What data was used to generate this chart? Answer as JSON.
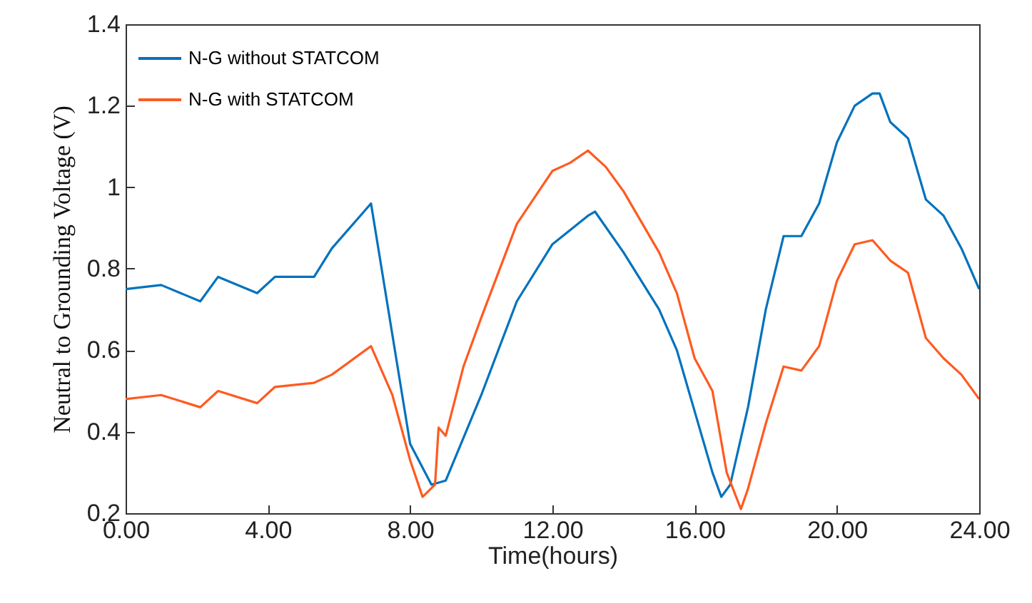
{
  "chart_data": {
    "type": "line",
    "xlabel": "Time(hours)",
    "ylabel": "Neutral to Grounding Voltage (V)",
    "xlim": [
      0,
      24
    ],
    "ylim": [
      0.2,
      1.4
    ],
    "xticks": [
      {
        "value": 0,
        "label": "0.00"
      },
      {
        "value": 4,
        "label": "4.00"
      },
      {
        "value": 8,
        "label": "8.00"
      },
      {
        "value": 12,
        "label": "12.00"
      },
      {
        "value": 16,
        "label": "16.00"
      },
      {
        "value": 20,
        "label": "20.00"
      },
      {
        "value": 24,
        "label": "24.00"
      }
    ],
    "yticks": [
      0.2,
      0.4,
      0.6,
      0.8,
      1,
      1.2,
      1.4
    ],
    "legend": "top left",
    "series": [
      {
        "name": "N-G without STATCOM",
        "color": "#0072bd",
        "x": [
          0,
          1,
          2.1,
          2.6,
          3.7,
          4.2,
          5.3,
          5.8,
          6.9,
          8,
          8.6,
          9,
          10,
          11,
          12,
          13,
          13.2,
          14,
          15,
          15.5,
          16,
          16.5,
          16.75,
          17,
          17.5,
          18,
          18.5,
          19,
          19.5,
          20,
          20.5,
          21,
          21.2,
          21.5,
          22,
          22.5,
          23,
          23.5,
          24
        ],
        "values": [
          0.75,
          0.76,
          0.72,
          0.78,
          0.74,
          0.78,
          0.78,
          0.85,
          0.96,
          0.37,
          0.27,
          0.28,
          0.49,
          0.72,
          0.86,
          0.93,
          0.94,
          0.84,
          0.7,
          0.6,
          0.45,
          0.3,
          0.24,
          0.27,
          0.46,
          0.7,
          0.88,
          0.88,
          0.96,
          1.11,
          1.2,
          1.23,
          1.23,
          1.16,
          1.12,
          0.97,
          0.93,
          0.85,
          0.75
        ]
      },
      {
        "name": "N-G with STATCOM",
        "color": "#ff5a1f",
        "x": [
          0,
          1,
          2.1,
          2.6,
          3.7,
          4.2,
          5.3,
          5.8,
          6.9,
          7.5,
          8,
          8.35,
          8.7,
          8.8,
          9,
          9.5,
          10,
          11,
          12,
          12.5,
          13,
          13.5,
          14,
          15,
          15.5,
          16,
          16.5,
          16.9,
          17.3,
          17.5,
          18,
          18.5,
          19,
          19.5,
          20,
          20.5,
          21,
          21.5,
          22,
          22.5,
          23,
          23.5,
          24
        ],
        "values": [
          0.48,
          0.49,
          0.46,
          0.5,
          0.47,
          0.51,
          0.52,
          0.54,
          0.61,
          0.49,
          0.33,
          0.24,
          0.27,
          0.41,
          0.39,
          0.56,
          0.68,
          0.91,
          1.04,
          1.06,
          1.09,
          1.05,
          0.99,
          0.84,
          0.74,
          0.58,
          0.5,
          0.3,
          0.21,
          0.26,
          0.42,
          0.56,
          0.55,
          0.61,
          0.77,
          0.86,
          0.87,
          0.82,
          0.79,
          0.63,
          0.58,
          0.54,
          0.48
        ]
      }
    ]
  }
}
